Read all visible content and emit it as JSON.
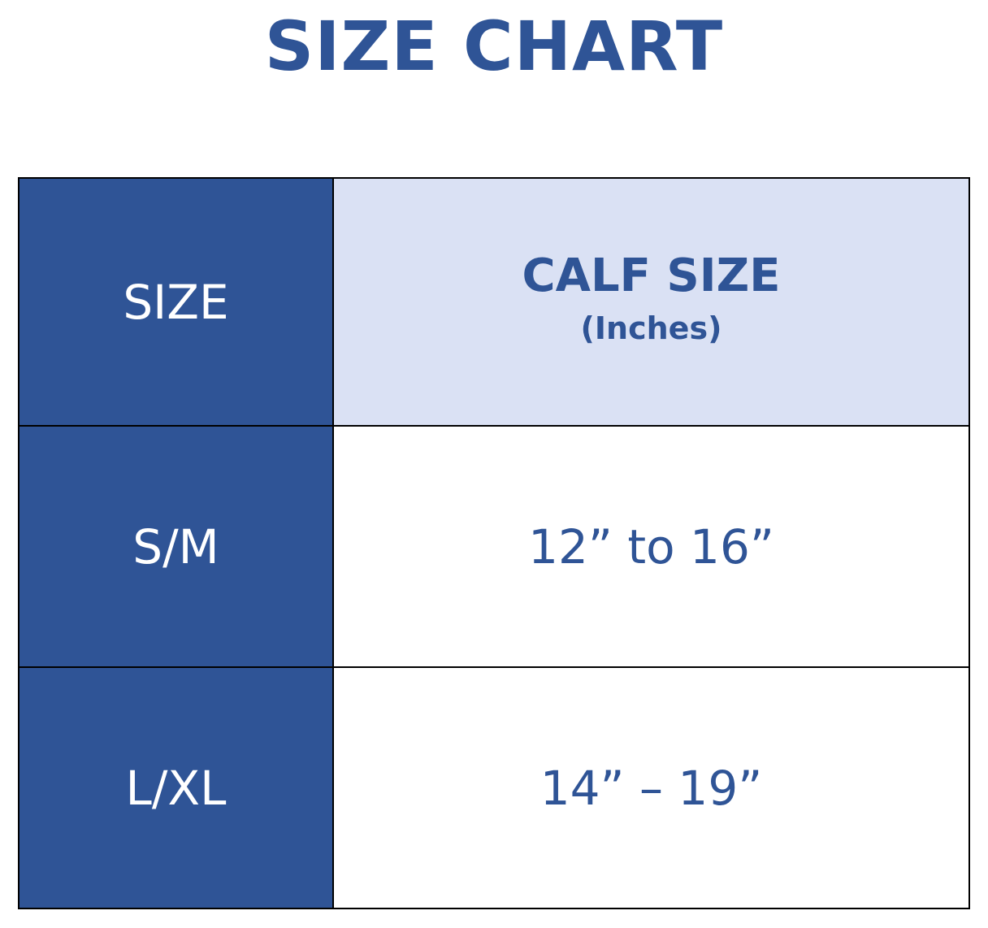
{
  "title": "SIZE CHART",
  "colors": {
    "primary": "#2f5496",
    "header_light": "#dae1f4"
  },
  "table": {
    "header": {
      "size": "SIZE",
      "calf": "CALF SIZE",
      "unit": "(Inches)"
    },
    "rows": [
      {
        "size": "S/M",
        "calf": "12” to 16”"
      },
      {
        "size": "L/XL",
        "calf": "14” – 19”"
      }
    ]
  }
}
